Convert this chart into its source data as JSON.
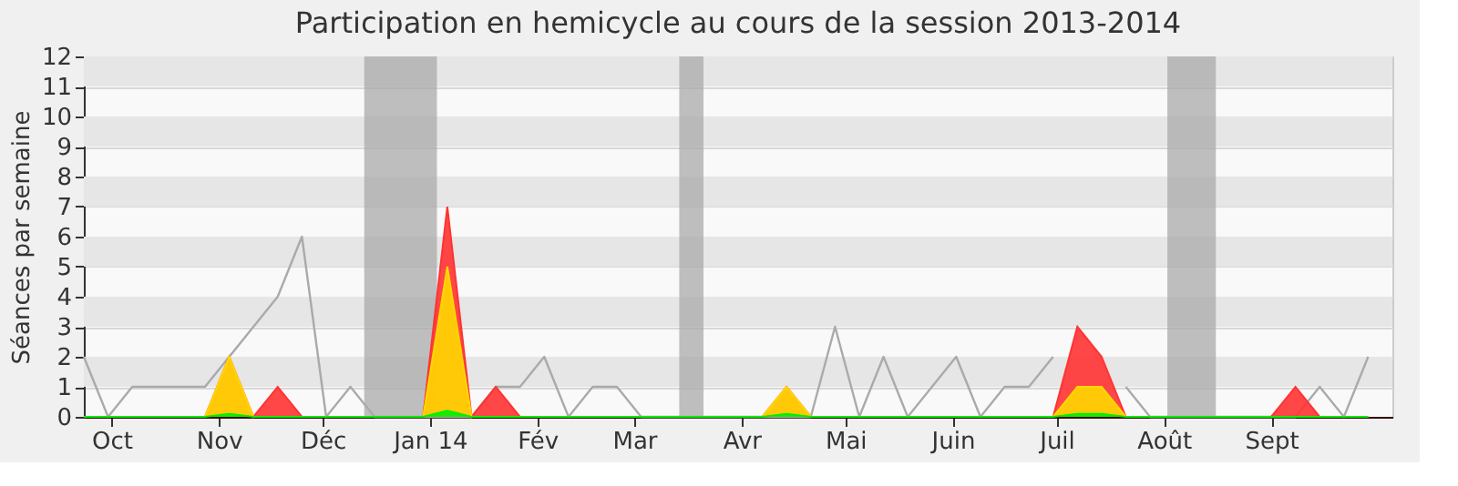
{
  "chart_data": {
    "type": "area",
    "title": "Participation en hemicycle au cours de la session 2013-2014",
    "ylabel": "Séances par semaine",
    "x": [
      "2013-09-23",
      "2013-09-30",
      "2013-10-07",
      "2013-10-14",
      "2013-10-21",
      "2013-10-28",
      "2013-11-04",
      "2013-11-11",
      "2013-11-18",
      "2013-11-25",
      "2013-12-02",
      "2013-12-09",
      "2013-12-16",
      "2013-12-23",
      "2013-12-30",
      "2014-01-06",
      "2014-01-13",
      "2014-01-20",
      "2014-01-27",
      "2014-02-03",
      "2014-02-10",
      "2014-02-17",
      "2014-02-24",
      "2014-03-03",
      "2014-03-10",
      "2014-03-17",
      "2014-03-24",
      "2014-03-31",
      "2014-04-07",
      "2014-04-14",
      "2014-04-21",
      "2014-04-28",
      "2014-05-05",
      "2014-05-12",
      "2014-05-19",
      "2014-05-26",
      "2014-06-02",
      "2014-06-09",
      "2014-06-16",
      "2014-06-23",
      "2014-06-30",
      "2014-07-07",
      "2014-07-14",
      "2014-07-21",
      "2014-07-28",
      "2014-08-04",
      "2014-08-11",
      "2014-08-18",
      "2014-08-25",
      "2014-09-01",
      "2014-09-08",
      "2014-09-15",
      "2014-09-22",
      "2014-09-29"
    ],
    "series": [
      {
        "type": "line",
        "color": "#aaaaaa",
        "values": [
          2,
          0,
          1,
          1,
          1,
          1,
          2,
          3,
          4,
          6,
          0,
          1,
          0,
          0,
          0,
          0,
          0,
          1,
          1,
          2,
          0,
          1,
          1,
          0,
          0,
          0,
          0,
          0,
          0,
          0,
          0,
          3,
          0,
          2,
          0,
          1,
          2,
          0,
          1,
          1,
          2,
          null,
          null,
          1,
          0,
          0,
          0,
          0,
          0,
          0,
          0,
          1,
          0,
          2
        ]
      },
      {
        "color": "#ff3333",
        "values": [
          0,
          0,
          0,
          0,
          0,
          0,
          2,
          0,
          1,
          0,
          0,
          0,
          0,
          0,
          0,
          7,
          0,
          1,
          0,
          0,
          0,
          0,
          0,
          0,
          0,
          0,
          0,
          0,
          0,
          1,
          0,
          0,
          0,
          0,
          0,
          0,
          0,
          0,
          0,
          0,
          0,
          3,
          2,
          0,
          0,
          0,
          0,
          0,
          0,
          0,
          1,
          0,
          0,
          0
        ]
      },
      {
        "color": "#ffd700",
        "values": [
          0,
          0,
          0,
          0,
          0,
          0,
          2,
          0,
          0,
          0,
          0,
          0,
          0,
          0,
          0,
          5,
          0,
          0,
          0,
          0,
          0,
          0,
          0,
          0,
          0,
          0,
          0,
          0,
          0,
          1,
          0,
          0,
          0,
          0,
          0,
          0,
          0,
          0,
          0,
          0,
          0,
          1,
          1,
          0,
          0,
          0,
          0,
          0,
          0,
          0,
          0,
          0,
          0,
          0
        ]
      },
      {
        "color": "#00ee00",
        "values": [
          0,
          0,
          0,
          0,
          0,
          0,
          0.1,
          0,
          0,
          0,
          0,
          0,
          0,
          0,
          0,
          0.2,
          0,
          0,
          0,
          0,
          0,
          0,
          0,
          0,
          0,
          0,
          0,
          0,
          0,
          0.1,
          0,
          0,
          0,
          0,
          0,
          0,
          0,
          0,
          0,
          0,
          0,
          0.1,
          0.1,
          0,
          0,
          0,
          0,
          0,
          0,
          0,
          0,
          0,
          0,
          0
        ]
      }
    ],
    "bands": [
      {
        "axis": "x",
        "from": "2013-12-13",
        "to": "2014-01-03",
        "color": "#aaaaaa"
      },
      {
        "axis": "x",
        "from": "2014-03-14",
        "to": "2014-03-21",
        "color": "#aaaaaa"
      },
      {
        "axis": "x",
        "from": "2014-08-02",
        "to": "2014-08-16",
        "color": "#aaaaaa"
      }
    ],
    "xlim": [
      "2013-09-23",
      "2014-10-06"
    ],
    "ylim": [
      0,
      12
    ],
    "yticks": [
      0,
      1,
      2,
      3,
      4,
      5,
      6,
      7,
      8,
      9,
      10,
      11,
      12
    ],
    "xticks": [
      {
        "value": "2013-10-01",
        "label": "Oct"
      },
      {
        "value": "2013-11-01",
        "label": "Nov"
      },
      {
        "value": "2013-12-01",
        "label": "Déc"
      },
      {
        "value": "2014-01-01",
        "label": "Jan 14"
      },
      {
        "value": "2014-02-01",
        "label": "Fév"
      },
      {
        "value": "2014-03-01",
        "label": "Mar"
      },
      {
        "value": "2014-04-01",
        "label": "Avr"
      },
      {
        "value": "2014-05-01",
        "label": "Mai"
      },
      {
        "value": "2014-06-01",
        "label": "Juin"
      },
      {
        "value": "2014-07-01",
        "label": "Juil"
      },
      {
        "value": "2014-08-01",
        "label": "Août"
      },
      {
        "value": "2014-09-01",
        "label": "Sept"
      }
    ],
    "grid": "y"
  }
}
